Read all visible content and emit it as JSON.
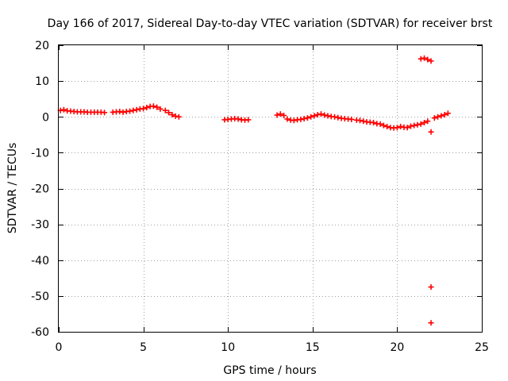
{
  "chart_data": {
    "type": "scatter",
    "title": "Day 166 of 2017, Sidereal Day-to-day VTEC variation (SDTVAR) for receiver brst",
    "xlabel": "GPS time / hours",
    "ylabel": "SDTVAR / TECUs",
    "xlim": [
      0,
      25
    ],
    "ylim": [
      -60,
      20
    ],
    "xticks": [
      0,
      5,
      10,
      15,
      20,
      25
    ],
    "yticks": [
      20,
      10,
      0,
      -10,
      -20,
      -30,
      -40,
      -50,
      -60
    ],
    "grid": true,
    "marker": "+",
    "color": "#ff0000",
    "series": [
      {
        "name": "SDTVAR",
        "x": [
          0.1,
          0.3,
          0.5,
          0.7,
          0.9,
          1.1,
          1.3,
          1.5,
          1.7,
          1.9,
          2.1,
          2.3,
          2.5,
          2.7,
          3.2,
          3.4,
          3.6,
          3.8,
          4.0,
          4.2,
          4.4,
          4.6,
          4.8,
          5.0,
          5.2,
          5.4,
          5.6,
          5.8,
          6.0,
          6.3,
          6.5,
          6.7,
          6.9,
          7.1,
          9.8,
          10.0,
          10.2,
          10.4,
          10.6,
          10.8,
          11.0,
          11.2,
          12.9,
          13.1,
          13.3,
          13.5,
          13.7,
          13.9,
          14.1,
          14.3,
          14.5,
          14.7,
          14.9,
          15.1,
          15.3,
          15.5,
          15.7,
          15.9,
          16.1,
          16.3,
          16.5,
          16.7,
          16.9,
          17.1,
          17.3,
          17.6,
          17.8,
          18.0,
          18.2,
          18.4,
          18.6,
          18.8,
          19.0,
          19.2,
          19.4,
          19.6,
          19.8,
          20.0,
          20.2,
          20.4,
          20.6,
          20.8,
          21.0,
          21.2,
          21.4,
          21.6,
          21.8,
          21.4,
          21.6,
          21.8,
          22.0,
          22.0,
          22.0,
          22.0,
          22.2,
          22.4,
          22.6,
          22.8,
          23.0
        ],
        "y": [
          1.8,
          2.0,
          1.7,
          1.6,
          1.5,
          1.4,
          1.4,
          1.4,
          1.3,
          1.3,
          1.3,
          1.3,
          1.3,
          1.2,
          1.3,
          1.4,
          1.5,
          1.3,
          1.5,
          1.6,
          1.8,
          2.0,
          2.2,
          2.3,
          2.6,
          2.9,
          3.0,
          2.7,
          2.2,
          1.8,
          1.2,
          0.6,
          0.2,
          0.0,
          -0.8,
          -0.7,
          -0.6,
          -0.5,
          -0.6,
          -0.8,
          -0.9,
          -0.8,
          0.5,
          0.8,
          0.4,
          -0.6,
          -0.9,
          -1.0,
          -0.8,
          -0.7,
          -0.5,
          -0.3,
          0.0,
          0.3,
          0.6,
          0.8,
          0.5,
          0.3,
          0.1,
          0.0,
          -0.2,
          -0.4,
          -0.5,
          -0.6,
          -0.7,
          -0.9,
          -1.0,
          -1.2,
          -1.4,
          -1.5,
          -1.6,
          -1.9,
          -2.0,
          -2.4,
          -2.7,
          -3.0,
          -3.1,
          -3.0,
          -2.7,
          -2.9,
          -3.0,
          -2.6,
          -2.4,
          -2.2,
          -2.0,
          -1.6,
          -1.2,
          16.2,
          16.4,
          16.0,
          15.6,
          -4.2,
          -47.5,
          -57.5,
          -0.3,
          0.0,
          0.3,
          0.6,
          1.0
        ]
      }
    ]
  }
}
